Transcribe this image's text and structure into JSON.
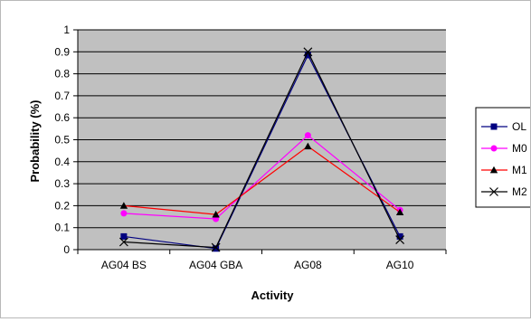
{
  "chart_data": {
    "type": "line",
    "title": "",
    "xlabel": "Activity",
    "ylabel": "Probability (%)",
    "categories": [
      "AG04 BS",
      "AG04 GBA",
      "AG08",
      "AG10"
    ],
    "ylim": [
      0,
      1
    ],
    "yticks": [
      "0",
      "0.1",
      "0.2",
      "0.3",
      "0.4",
      "0.5",
      "0.6",
      "0.7",
      "0.8",
      "0.9",
      "1"
    ],
    "grid": true,
    "plot_background": "#c0c0c0",
    "legend_placement": "right",
    "series": [
      {
        "name": "OL",
        "values": [
          0.06,
          0.005,
          0.885,
          0.06
        ],
        "color": "#000080",
        "marker": "square"
      },
      {
        "name": "M0",
        "values": [
          0.165,
          0.14,
          0.52,
          0.18
        ],
        "color": "#ff00ff",
        "marker": "circle"
      },
      {
        "name": "M1",
        "values": [
          0.2,
          0.16,
          0.47,
          0.17
        ],
        "color": "#ff0000",
        "marker": "triangle"
      },
      {
        "name": "M2",
        "values": [
          0.035,
          0.01,
          0.9,
          0.045
        ],
        "color": "#000000",
        "marker": "x"
      }
    ]
  }
}
